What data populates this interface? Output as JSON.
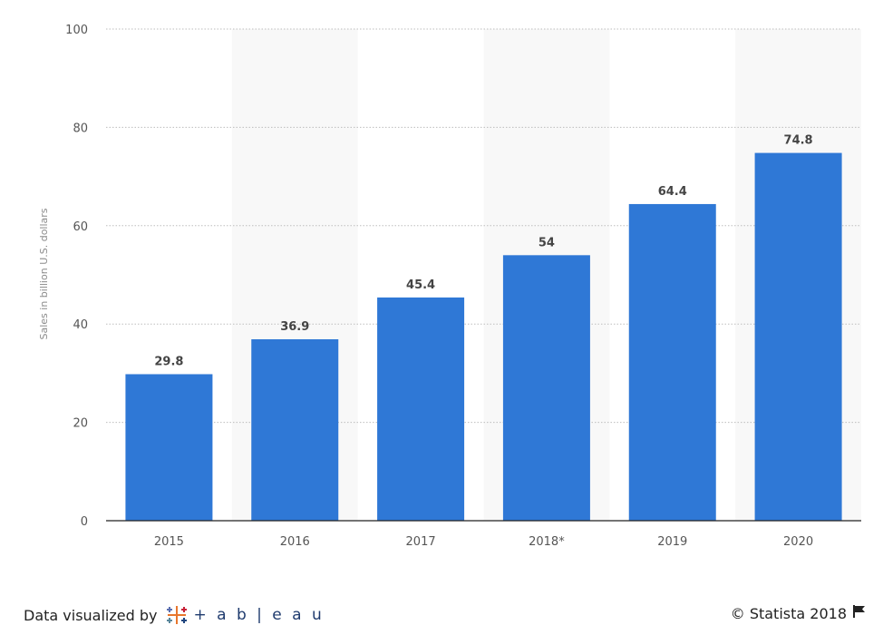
{
  "chart_data": {
    "type": "bar",
    "categories": [
      "2015",
      "2016",
      "2017",
      "2018*",
      "2019",
      "2020"
    ],
    "values": [
      29.8,
      36.9,
      45.4,
      54,
      64.4,
      74.8
    ],
    "data_labels": [
      "29.8",
      "36.9",
      "45.4",
      "54",
      "64.4",
      "74.8"
    ],
    "ylabel": "Sales in billion U.S. dollars",
    "ylim": [
      0,
      100
    ],
    "yticks": [
      "0",
      "20",
      "40",
      "60",
      "80",
      "100"
    ],
    "ytick_values": [
      0,
      20,
      40,
      60,
      80,
      100
    ],
    "grid": true,
    "bar_color": "#2f78d6",
    "alt_band_color": "#f8f8f8"
  },
  "footer": {
    "left_text": "Data visualized by",
    "brand": "+ a b | e a u",
    "brand_logo": "tableau-plus-logo",
    "right_text": "© Statista 2018",
    "right_icon": "flag-icon"
  }
}
